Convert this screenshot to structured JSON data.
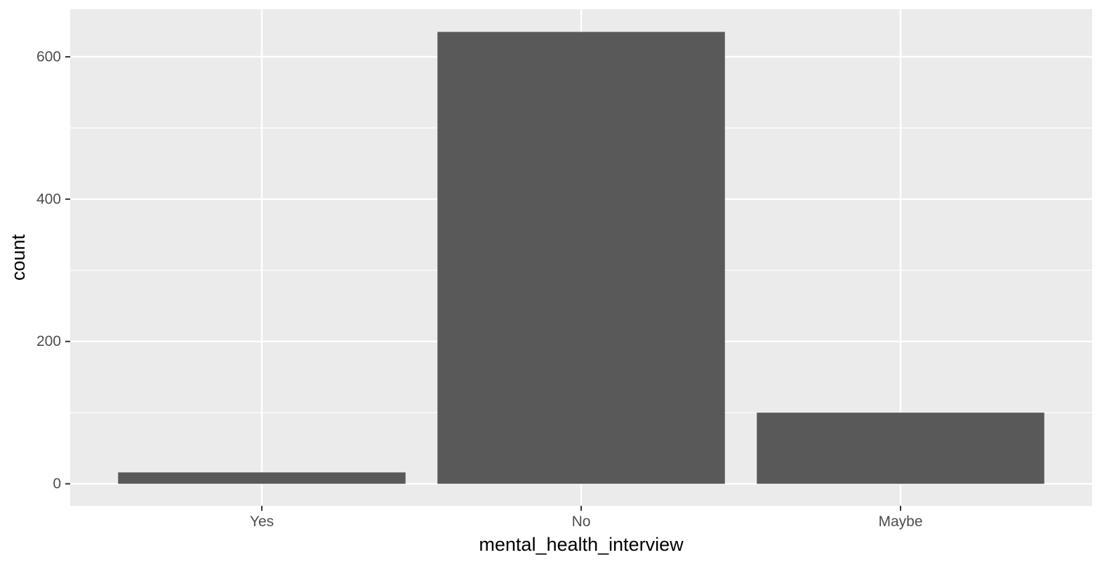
{
  "chart_data": {
    "type": "bar",
    "title": "",
    "xlabel": "mental_health_interview",
    "ylabel": "count",
    "categories": [
      "Yes",
      "No",
      "Maybe"
    ],
    "values": [
      16,
      635,
      100
    ],
    "ylim": [
      -31,
      667
    ],
    "y_ticks": [
      0,
      200,
      400,
      600
    ],
    "y_tick_labels": [
      "0",
      "200",
      "400",
      "600"
    ],
    "grid": true,
    "legend": "none",
    "colors": {
      "panel_background": "#ebebeb",
      "grid_major": "#ffffff",
      "bar_fill": "#595959",
      "tick_text": "#4d4d4d",
      "tick_marks": "#333333",
      "axis_title": "#000000"
    }
  }
}
